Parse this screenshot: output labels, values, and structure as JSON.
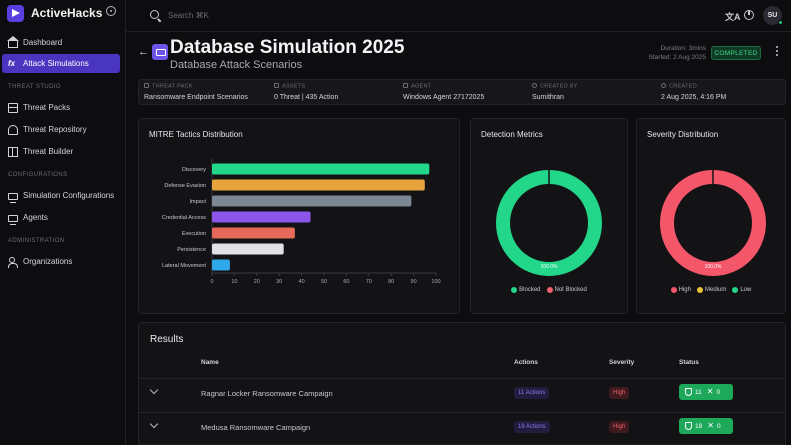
{
  "app": {
    "name": "ActiveHacks"
  },
  "sidebar": {
    "top_items": [
      {
        "label": "Dashboard",
        "icon": "home-icon"
      },
      {
        "label": "Attack Simulations",
        "icon": "function-icon",
        "active": true
      }
    ],
    "sections": [
      {
        "title": "THREAT STUDIO",
        "items": [
          {
            "label": "Threat Packs",
            "icon": "package-icon"
          },
          {
            "label": "Threat Repository",
            "icon": "repository-icon"
          },
          {
            "label": "Threat Builder",
            "icon": "builder-icon"
          }
        ]
      },
      {
        "title": "CONFIGURATIONS",
        "items": [
          {
            "label": "Simulation Configurations",
            "icon": "monitor-icon"
          },
          {
            "label": "Agents",
            "icon": "laptop-icon"
          }
        ]
      },
      {
        "title": "ADMINISTRATION",
        "items": [
          {
            "label": "Organizations",
            "icon": "users-icon"
          }
        ]
      }
    ]
  },
  "topbar": {
    "search_placeholder": "Search ⌘K",
    "avatar_initials": "SU"
  },
  "header": {
    "title": "Database Simulation 2025",
    "subtitle": "Database Attack Scenarios",
    "duration": "Duration: 3mins",
    "started": "Started: 2 Aug 2025",
    "status": "COMPLETED"
  },
  "info": [
    {
      "label": "THREAT PACK",
      "value": "Ransomware Endpoint Scenarios"
    },
    {
      "label": "ASSETS",
      "value": "0 Threat | 435 Action"
    },
    {
      "label": "AGENT",
      "value": "Windows Agent 27172025"
    },
    {
      "label": "CREATED BY",
      "value": "Sumithran"
    },
    {
      "label": "CREATED",
      "value": "2 Aug 2025, 4:16 PM"
    }
  ],
  "cards": {
    "mitre_title": "MITRE Tactics Distribution",
    "detection_title": "Detection Metrics",
    "severity_title": "Severity Distribution"
  },
  "chart_data": [
    {
      "type": "bar",
      "orientation": "horizontal",
      "title": "MITRE Tactics Distribution",
      "categories": [
        "Discovery",
        "Defense Evasion",
        "Impact",
        "Credential Access",
        "Execution",
        "Persistence",
        "Lateral Movement"
      ],
      "values": [
        97,
        95,
        89,
        44,
        37,
        32,
        8
      ],
      "colors": [
        "#22d68a",
        "#e8a43c",
        "#7c8794",
        "#8a55e8",
        "#e8685a",
        "#e2e2e6",
        "#2ea8e8"
      ],
      "xlim": [
        0,
        100
      ],
      "xticks": [
        "0",
        "10",
        "20",
        "30",
        "40",
        "50",
        "60",
        "70",
        "80",
        "90",
        "100"
      ]
    },
    {
      "type": "pie",
      "donut": true,
      "title": "Detection Metrics",
      "labels": [
        "Blocked",
        "Not Blocked"
      ],
      "values": [
        100,
        0
      ],
      "colors": [
        "#22d68a",
        "#f0606a"
      ],
      "center_label": "100.0%"
    },
    {
      "type": "pie",
      "donut": true,
      "title": "Severity Distribution",
      "labels": [
        "High",
        "Medium",
        "Low"
      ],
      "values": [
        100,
        0,
        0
      ],
      "colors": [
        "#f4566a",
        "#e8c23c",
        "#22d68a"
      ],
      "center_label": "100.0%"
    }
  ],
  "results": {
    "title": "Results",
    "columns": [
      "Name",
      "Actions",
      "Severity",
      "Status"
    ],
    "rows": [
      {
        "name": "Ragnar Locker Ransomware Campaign",
        "actions": "11 Actions",
        "severity": "High",
        "blocked": "11",
        "failed": "0"
      },
      {
        "name": "Medusa Ransomware Campaign",
        "actions": "18 Actions",
        "severity": "High",
        "blocked": "18",
        "failed": "0"
      }
    ]
  }
}
